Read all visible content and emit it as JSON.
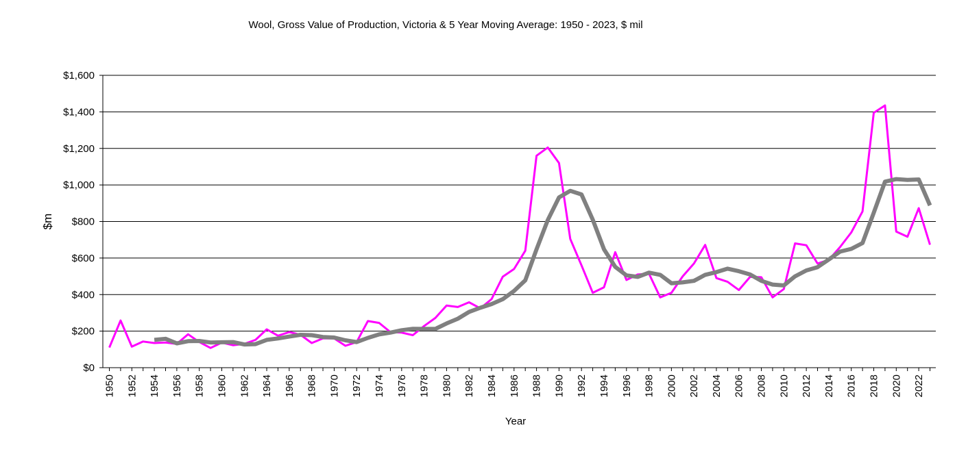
{
  "chart_data": {
    "type": "line",
    "title": "Wool, Gross Value of Production, Victoria & 5 Year Moving Average: 1950 - 2023, $ mil",
    "xlabel": "Year",
    "ylabel": "$m",
    "ylim": [
      0,
      1600
    ],
    "yticks": [
      "$0",
      "$200",
      "$400",
      "$600",
      "$800",
      "$1,000",
      "$1,200",
      "$1,400",
      "$1,600"
    ],
    "ytick_values": [
      0,
      200,
      400,
      600,
      800,
      1000,
      1200,
      1400,
      1600
    ],
    "x": [
      1950,
      1951,
      1952,
      1953,
      1954,
      1955,
      1956,
      1957,
      1958,
      1959,
      1960,
      1961,
      1962,
      1963,
      1964,
      1965,
      1966,
      1967,
      1968,
      1969,
      1970,
      1971,
      1972,
      1973,
      1974,
      1975,
      1976,
      1977,
      1978,
      1979,
      1980,
      1981,
      1982,
      1983,
      1984,
      1985,
      1986,
      1987,
      1988,
      1989,
      1990,
      1991,
      1992,
      1993,
      1994,
      1995,
      1996,
      1997,
      1998,
      1999,
      2000,
      2001,
      2002,
      2003,
      2004,
      2005,
      2006,
      2007,
      2008,
      2009,
      2010,
      2011,
      2012,
      2013,
      2014,
      2015,
      2016,
      2017,
      2018,
      2019,
      2020,
      2021,
      2022,
      2023
    ],
    "xtick_labels": [
      "1950",
      "1952",
      "1954",
      "1956",
      "1958",
      "1960",
      "1962",
      "1964",
      "1966",
      "1968",
      "1970",
      "1972",
      "1974",
      "1976",
      "1978",
      "1980",
      "1982",
      "1984",
      "1986",
      "1988",
      "1990",
      "1992",
      "1994",
      "1996",
      "1998",
      "2000",
      "2002",
      "2004",
      "2006",
      "2008",
      "2010",
      "2012",
      "2014",
      "2016",
      "2018",
      "2020",
      "2022"
    ],
    "grid": true,
    "legend": "none",
    "series": [
      {
        "color": "#ff00ff",
        "line_width": 3,
        "values": [
          110,
          258,
          115,
          143,
          135,
          138,
          130,
          183,
          140,
          108,
          137,
          123,
          130,
          152,
          210,
          175,
          195,
          180,
          135,
          160,
          160,
          120,
          140,
          255,
          245,
          195,
          192,
          178,
          228,
          272,
          340,
          332,
          358,
          325,
          375,
          498,
          540,
          640,
          1160,
          1205,
          1120,
          705,
          560,
          410,
          440,
          632,
          480,
          510,
          515,
          385,
          410,
          500,
          570,
          672,
          490,
          470,
          425,
          497,
          495,
          385,
          430,
          680,
          670,
          570,
          590,
          660,
          740,
          855,
          1395,
          1435,
          745,
          717,
          873,
          673
        ]
      },
      {
        "color": "#808080",
        "line_width": 6,
        "values": [
          null,
          null,
          null,
          null,
          152,
          158,
          133,
          145,
          146,
          138,
          139,
          140,
          127,
          129,
          152,
          160,
          170,
          180,
          178,
          168,
          165,
          150,
          140,
          163,
          182,
          192,
          205,
          213,
          212,
          212,
          242,
          268,
          305,
          328,
          348,
          375,
          420,
          478,
          648,
          808,
          932,
          968,
          948,
          810,
          648,
          552,
          505,
          497,
          520,
          508,
          462,
          467,
          475,
          508,
          523,
          542,
          528,
          510,
          475,
          455,
          450,
          500,
          532,
          550,
          592,
          635,
          650,
          682,
          848,
          1018,
          1032,
          1028,
          1030,
          888
        ]
      }
    ]
  }
}
